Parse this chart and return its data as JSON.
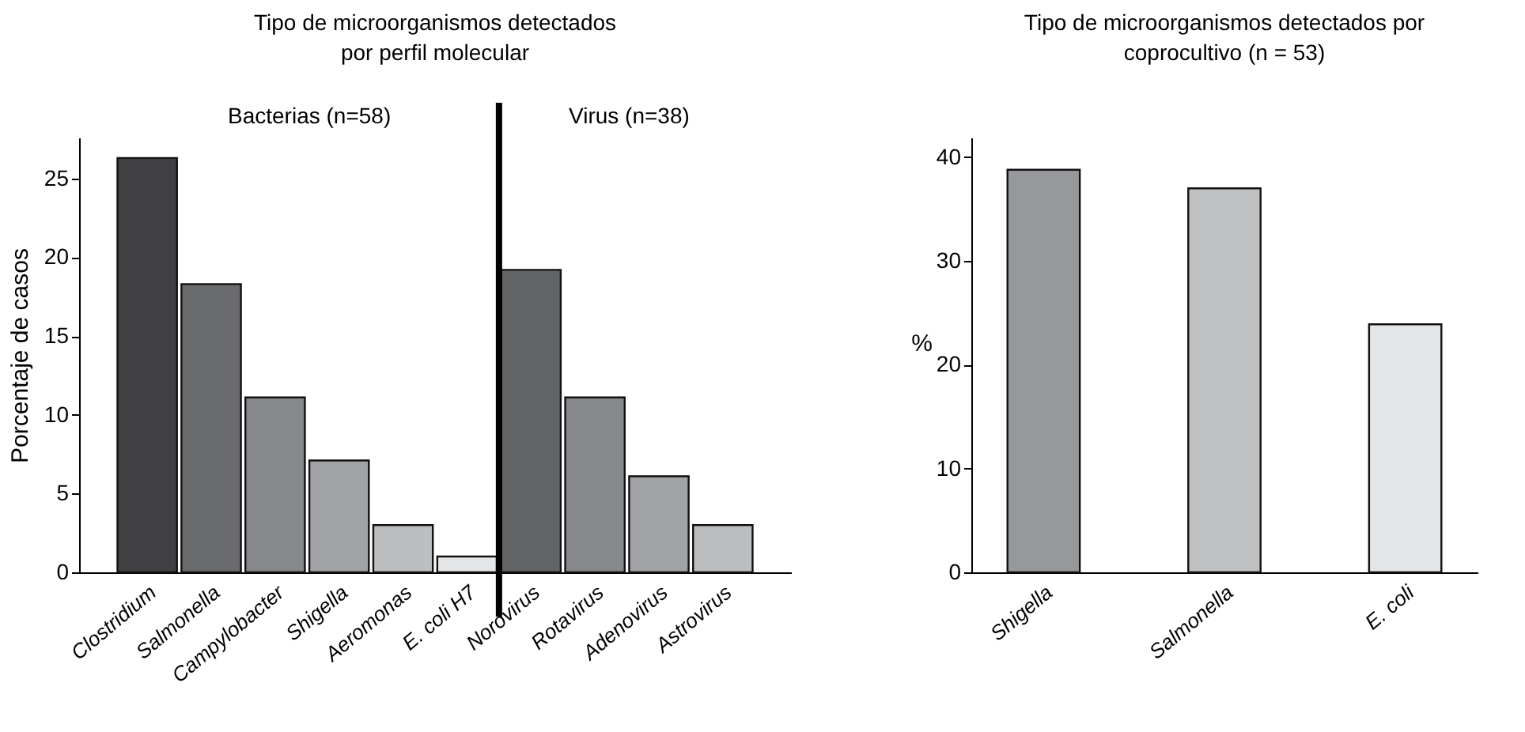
{
  "chart_data": [
    {
      "type": "bar",
      "title": "Tipo de microorganismos detectados\npor perfil molecular",
      "ylabel": "Porcentaje de casos",
      "categories": [
        "Clostridium",
        "Salmonella",
        "Campylobacter",
        "Shigella",
        "Aeromonas",
        "E. coli H7",
        "Norovirus",
        "Rotavirus",
        "Adenovirus",
        "Astrovirus"
      ],
      "values": [
        26.3,
        18.3,
        11.1,
        7.1,
        3.0,
        1.0,
        19.2,
        11.1,
        6.1,
        3.0
      ],
      "colors": [
        "#414143",
        "#6a6b6d",
        "#87888b",
        "#a2a3a6",
        "#bdbec0",
        "#e4e5e6",
        "#636466",
        "#87888b",
        "#a2a3a6",
        "#bdbec0"
      ],
      "ylim": [
        0,
        27.6
      ],
      "yticks": [
        0,
        5,
        10,
        15,
        20,
        25
      ],
      "grid": false,
      "annotations": [
        "Bacterias (n=58)",
        "Virus (n=38)"
      ]
    },
    {
      "type": "bar",
      "title": "Tipo de microorganismos detectados por\ncoprocultivo (n = 53)",
      "ylabel": "%",
      "categories": [
        "Shigella",
        "Salmonella",
        "E. coli"
      ],
      "values": [
        38.8,
        37.0,
        23.9
      ],
      "colors": [
        "#97989b",
        "#bfc0c2",
        "#e4e5e6"
      ],
      "ylim": [
        0,
        41.9
      ],
      "yticks": [
        0,
        10,
        20,
        30,
        40
      ],
      "grid": false
    }
  ]
}
